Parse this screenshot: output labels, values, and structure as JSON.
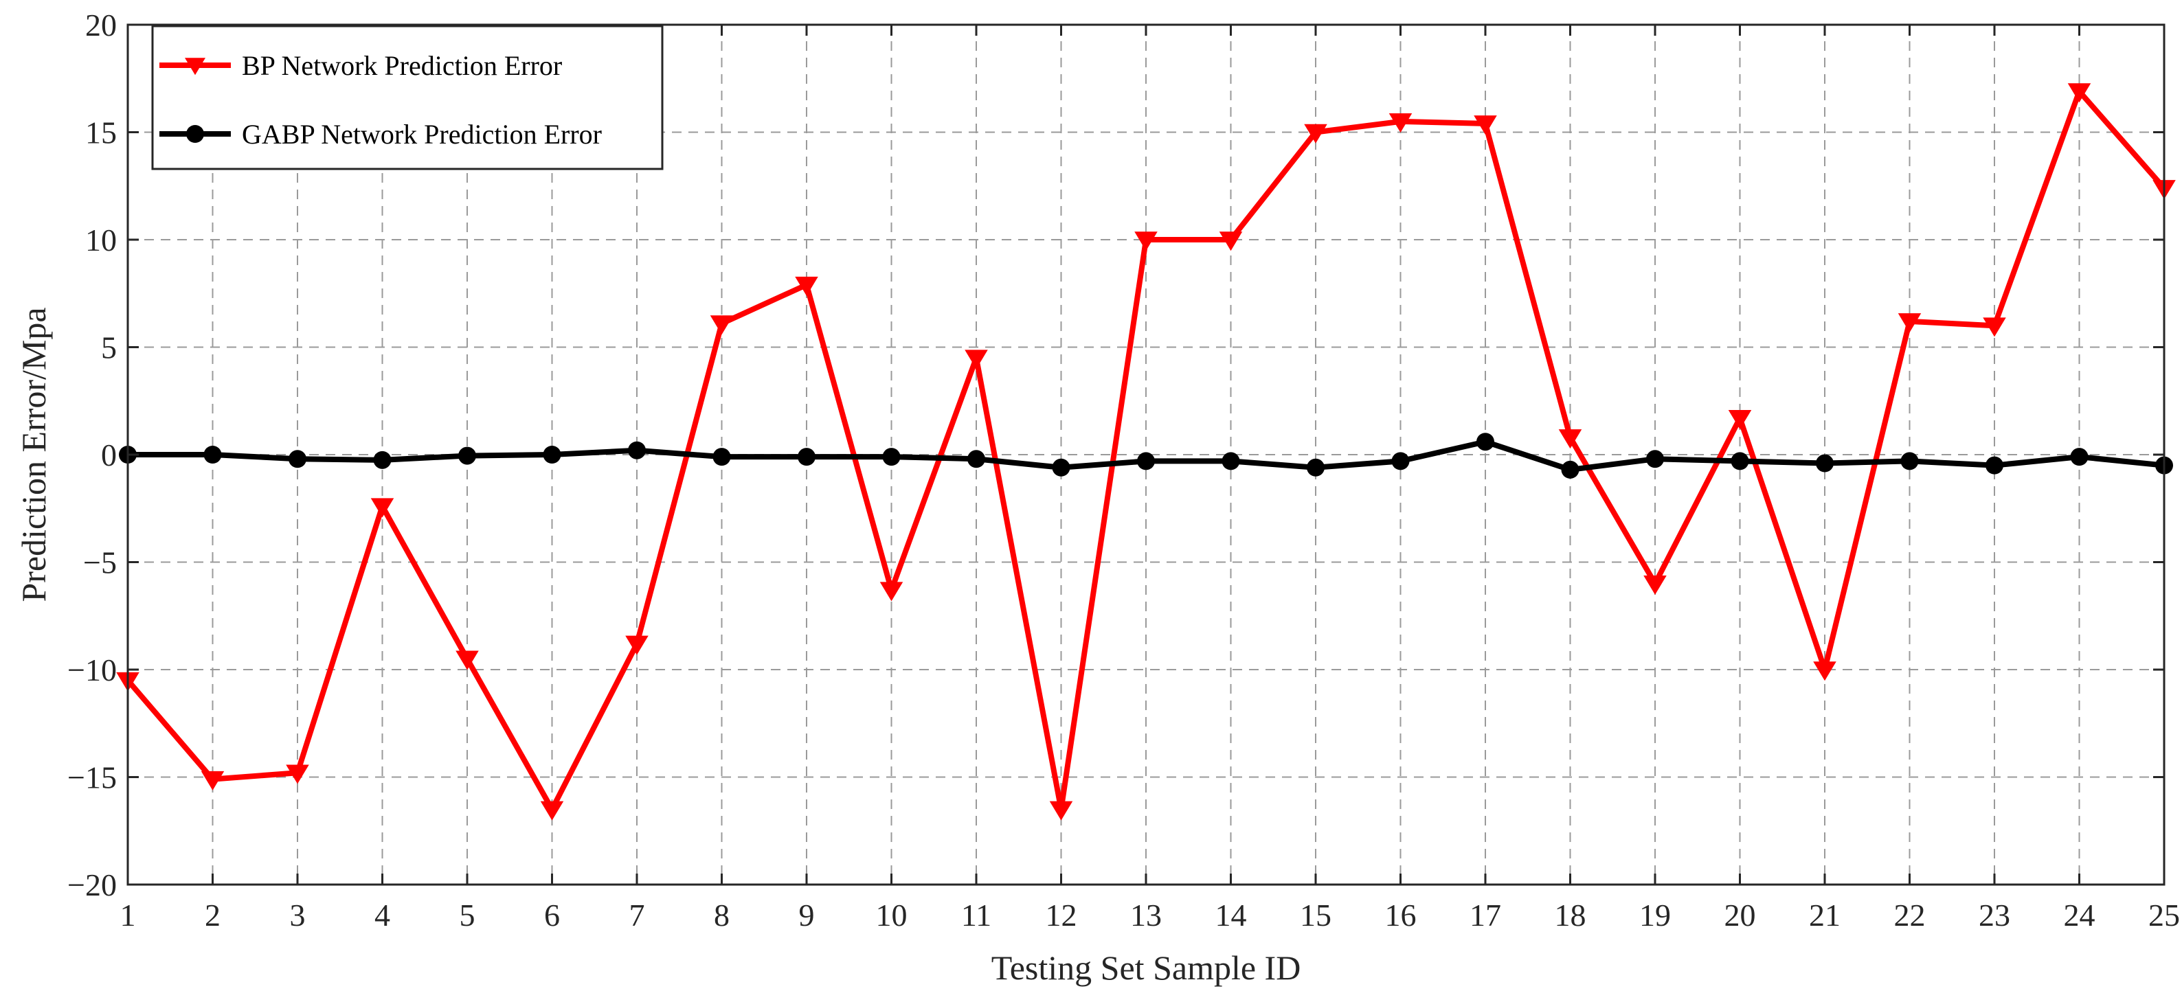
{
  "chart_data": {
    "type": "line",
    "title": "",
    "xlabel": "Testing Set Sample ID",
    "ylabel": "Prediction Error/Mpa",
    "xlim": [
      1,
      25
    ],
    "ylim": [
      -20,
      20
    ],
    "x_ticks": [
      "1",
      "2",
      "3",
      "4",
      "5",
      "6",
      "7",
      "8",
      "9",
      "10",
      "11",
      "12",
      "13",
      "14",
      "15",
      "16",
      "17",
      "18",
      "19",
      "20",
      "21",
      "22",
      "23",
      "24",
      "25"
    ],
    "y_ticks": [
      "20",
      "15",
      "10",
      "5",
      "0",
      "−5",
      "−10",
      "−15",
      "−20"
    ],
    "grid": true,
    "legend_position": "top-left",
    "x": [
      1,
      2,
      3,
      4,
      5,
      6,
      7,
      8,
      9,
      10,
      11,
      12,
      13,
      14,
      15,
      16,
      17,
      18,
      19,
      20,
      21,
      22,
      23,
      24,
      25
    ],
    "series": [
      {
        "name": "BP Network Prediction Error",
        "color": "#ff0000",
        "marker": "triangle-down",
        "values": [
          -10.5,
          -15.1,
          -14.8,
          -2.4,
          -9.5,
          -16.5,
          -8.8,
          6.1,
          7.9,
          -6.3,
          4.5,
          -16.5,
          10.0,
          10.0,
          15.0,
          15.5,
          15.4,
          0.8,
          -6.0,
          1.7,
          -10.0,
          6.2,
          6.0,
          16.9,
          12.4
        ]
      },
      {
        "name": "GABP Network Prediction Error",
        "color": "#000000",
        "marker": "circle",
        "values": [
          0.0,
          0.0,
          -0.2,
          -0.25,
          -0.05,
          0.0,
          0.2,
          -0.1,
          -0.1,
          -0.1,
          -0.2,
          -0.6,
          -0.3,
          -0.3,
          -0.6,
          -0.3,
          0.6,
          -0.7,
          -0.2,
          -0.3,
          -0.4,
          -0.3,
          -0.5,
          -0.1,
          -0.5
        ]
      }
    ]
  }
}
